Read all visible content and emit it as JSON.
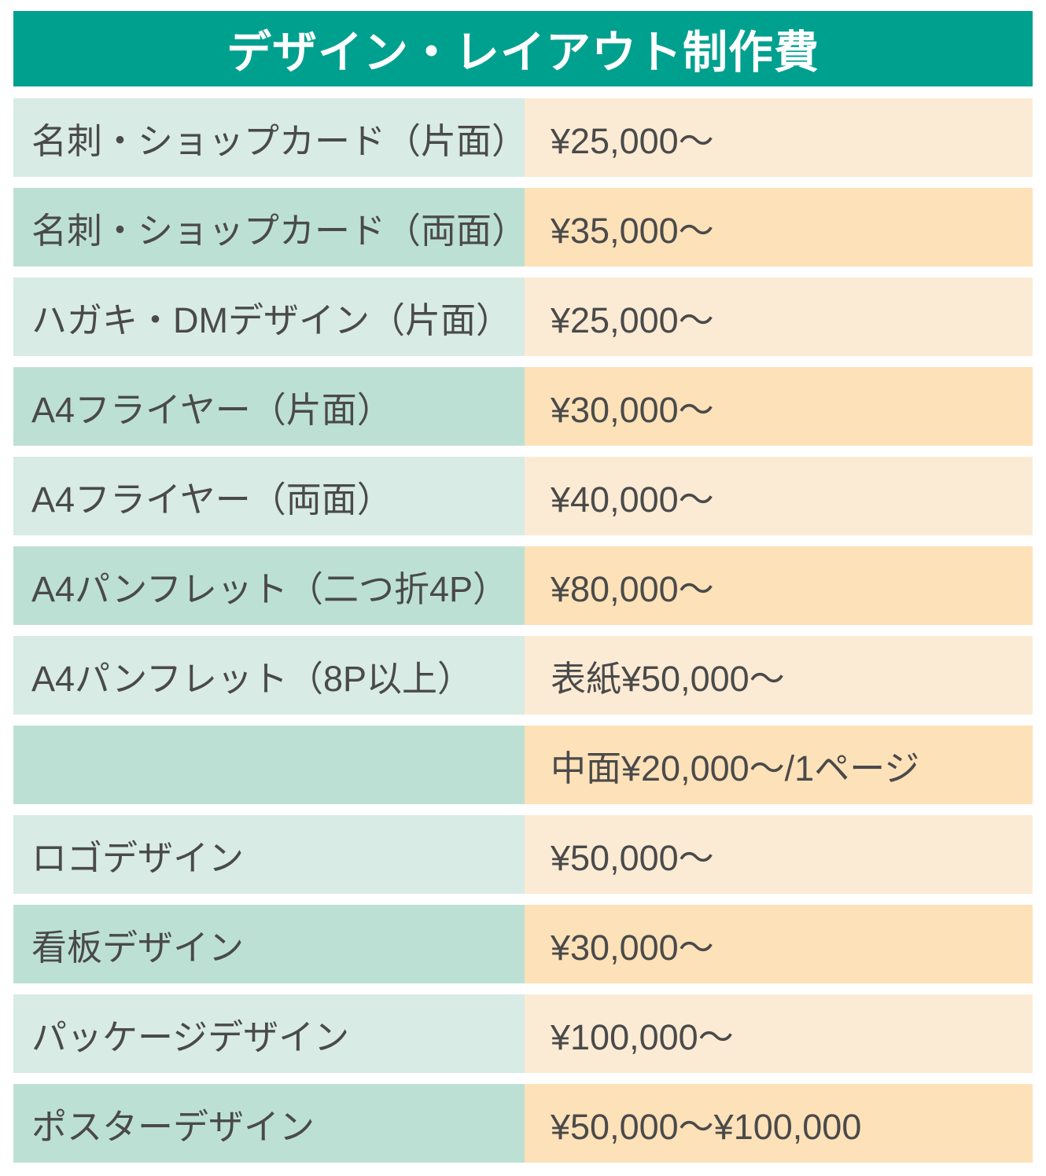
{
  "colors": {
    "header_bg": "#00A08F",
    "header_text": "#FFFFFF",
    "label_bg_light": "#D8EBE4",
    "label_bg_dark": "#BDE0D5",
    "price_bg_light": "#FCEBD4",
    "price_bg_dark": "#FDE1B8",
    "text_color": "#4A4A4A"
  },
  "chart_data": {
    "type": "table",
    "title": "デザイン・レイアウト制作費",
    "legend_position": "none",
    "rows": [
      {
        "label": "名刺・ショップカード（片面）",
        "price": "¥25,000～",
        "shade": "light"
      },
      {
        "label": "名刺・ショップカード（両面）",
        "price": "¥35,000～",
        "shade": "dark"
      },
      {
        "label": "ハガキ・DMデザイン（片面）",
        "price": "¥25,000～",
        "shade": "light"
      },
      {
        "label": "A4フライヤー（片面）",
        "price": "¥30,000～",
        "shade": "dark"
      },
      {
        "label": "A4フライヤー（両面）",
        "price": "¥40,000～",
        "shade": "light"
      },
      {
        "label": "A4パンフレット（二つ折4P）",
        "price": "¥80,000～",
        "shade": "dark"
      },
      {
        "label": "A4パンフレット（8P以上）",
        "price": "表紙¥50,000～",
        "shade": "light"
      },
      {
        "label": "",
        "price": "中面¥20,000～/1ページ",
        "shade": "dark"
      },
      {
        "label": "ロゴデザイン",
        "price": "¥50,000～",
        "shade": "light"
      },
      {
        "label": "看板デザイン",
        "price": "¥30,000～",
        "shade": "dark"
      },
      {
        "label": "パッケージデザイン",
        "price": "¥100,000～",
        "shade": "light"
      },
      {
        "label": "ポスターデザイン",
        "price": "¥50,000～¥100,000",
        "shade": "dark"
      }
    ]
  }
}
